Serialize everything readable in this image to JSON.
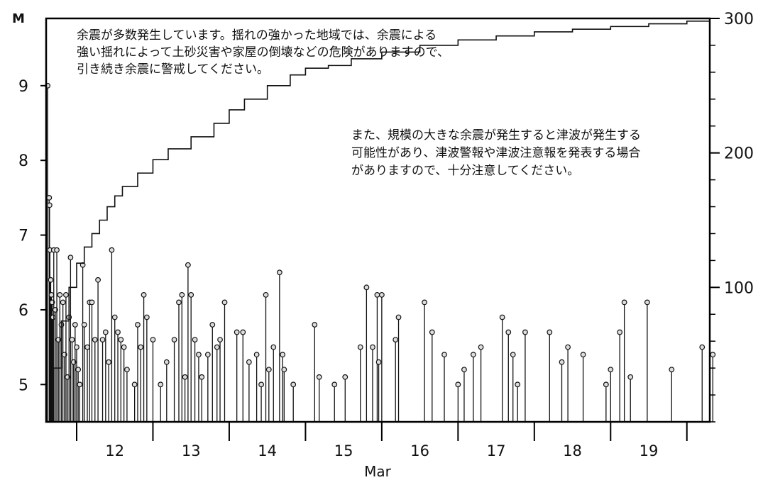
{
  "chart_data": {
    "type": "scatter",
    "title": "",
    "xlabel": "Mar",
    "ylabel_left": "M",
    "ylabel_right": "",
    "x_ticks": [
      "12",
      "13",
      "14",
      "15",
      "16",
      "17",
      "18",
      "19"
    ],
    "y_ticks_left": [
      "5",
      "6",
      "7",
      "8",
      "9"
    ],
    "y_ticks_right": [
      "100",
      "200",
      "300"
    ],
    "ylim_left": [
      4.5,
      9.9
    ],
    "ylim_right": [
      0,
      300
    ],
    "xlim_days": [
      11.6,
      20.3
    ],
    "grid": false,
    "legend": "none",
    "annotations": [
      {
        "id": "aftershock-warning",
        "lines": [
          "余震が多数発生しています。揺れの強かった地域では、余震による",
          "強い揺れによって土砂災害や家屋の倒壊などの危険がありますので、",
          "引き続き余震に警戒してください。"
        ]
      },
      {
        "id": "tsunami-warning",
        "lines": [
          "また、規模の大きな余震が発生すると津波が発生する",
          "可能性があり、津波警報や津波注意報を発表する場合",
          "がありますので、十分注意してください。"
        ]
      }
    ],
    "series": [
      {
        "type": "stem",
        "axis": "left",
        "points": [
          [
            11.62,
            9.0
          ],
          [
            11.64,
            7.5
          ],
          [
            11.645,
            7.4
          ],
          [
            11.65,
            6.8
          ],
          [
            11.66,
            6.4
          ],
          [
            11.67,
            6.2
          ],
          [
            11.68,
            6.1
          ],
          [
            11.69,
            5.9
          ],
          [
            11.7,
            6.8
          ],
          [
            11.72,
            6.0
          ],
          [
            11.74,
            6.8
          ],
          [
            11.76,
            5.6
          ],
          [
            11.78,
            6.2
          ],
          [
            11.8,
            5.8
          ],
          [
            11.82,
            6.1
          ],
          [
            11.84,
            5.4
          ],
          [
            11.86,
            6.2
          ],
          [
            11.88,
            5.1
          ],
          [
            11.9,
            5.9
          ],
          [
            11.92,
            6.7
          ],
          [
            11.94,
            5.6
          ],
          [
            11.96,
            5.3
          ],
          [
            11.98,
            5.8
          ],
          [
            12.0,
            5.5
          ],
          [
            12.02,
            5.2
          ],
          [
            12.04,
            5.0
          ],
          [
            12.08,
            6.6
          ],
          [
            12.1,
            5.8
          ],
          [
            12.14,
            5.5
          ],
          [
            12.17,
            6.1
          ],
          [
            12.2,
            6.1
          ],
          [
            12.24,
            5.6
          ],
          [
            12.28,
            6.4
          ],
          [
            12.34,
            5.6
          ],
          [
            12.38,
            5.7
          ],
          [
            12.42,
            5.3
          ],
          [
            12.46,
            6.8
          ],
          [
            12.5,
            5.9
          ],
          [
            12.54,
            5.7
          ],
          [
            12.58,
            5.6
          ],
          [
            12.62,
            5.5
          ],
          [
            12.66,
            5.2
          ],
          [
            12.76,
            5.0
          ],
          [
            12.8,
            5.8
          ],
          [
            12.84,
            5.5
          ],
          [
            12.88,
            6.2
          ],
          [
            12.92,
            5.9
          ],
          [
            13.0,
            5.6
          ],
          [
            13.1,
            5.0
          ],
          [
            13.18,
            5.3
          ],
          [
            13.28,
            5.6
          ],
          [
            13.34,
            6.1
          ],
          [
            13.38,
            6.2
          ],
          [
            13.42,
            5.1
          ],
          [
            13.46,
            6.6
          ],
          [
            13.5,
            6.2
          ],
          [
            13.55,
            5.6
          ],
          [
            13.6,
            5.4
          ],
          [
            13.64,
            5.1
          ],
          [
            13.72,
            5.4
          ],
          [
            13.78,
            5.8
          ],
          [
            13.84,
            5.5
          ],
          [
            13.88,
            5.6
          ],
          [
            13.94,
            6.1
          ],
          [
            14.1,
            5.7
          ],
          [
            14.18,
            5.7
          ],
          [
            14.26,
            5.3
          ],
          [
            14.36,
            5.4
          ],
          [
            14.42,
            5.0
          ],
          [
            14.48,
            6.2
          ],
          [
            14.52,
            5.2
          ],
          [
            14.58,
            5.5
          ],
          [
            14.66,
            6.5
          ],
          [
            14.7,
            5.4
          ],
          [
            14.72,
            5.2
          ],
          [
            14.84,
            5.0
          ],
          [
            15.12,
            5.8
          ],
          [
            15.18,
            5.1
          ],
          [
            15.38,
            5.0
          ],
          [
            15.52,
            5.1
          ],
          [
            15.72,
            5.5
          ],
          [
            15.8,
            6.3
          ],
          [
            15.88,
            5.5
          ],
          [
            15.94,
            6.2
          ],
          [
            15.96,
            5.3
          ],
          [
            16.0,
            6.2
          ],
          [
            16.18,
            5.6
          ],
          [
            16.22,
            5.9
          ],
          [
            16.56,
            6.1
          ],
          [
            16.66,
            5.7
          ],
          [
            16.82,
            5.4
          ],
          [
            17.0,
            5.0
          ],
          [
            17.08,
            5.2
          ],
          [
            17.2,
            5.4
          ],
          [
            17.3,
            5.5
          ],
          [
            17.58,
            5.9
          ],
          [
            17.66,
            5.7
          ],
          [
            17.72,
            5.4
          ],
          [
            17.78,
            5.0
          ],
          [
            17.88,
            5.7
          ],
          [
            18.2,
            5.7
          ],
          [
            18.36,
            5.3
          ],
          [
            18.44,
            5.5
          ],
          [
            18.64,
            5.4
          ],
          [
            18.94,
            5.0
          ],
          [
            19.0,
            5.2
          ],
          [
            19.12,
            5.7
          ],
          [
            19.18,
            6.1
          ],
          [
            19.26,
            5.1
          ],
          [
            19.48,
            6.1
          ],
          [
            19.8,
            5.2
          ],
          [
            20.2,
            5.5
          ],
          [
            20.34,
            5.4
          ]
        ]
      },
      {
        "type": "step",
        "axis": "right",
        "points": [
          [
            11.62,
            0
          ],
          [
            11.7,
            40
          ],
          [
            11.8,
            75
          ],
          [
            11.9,
            100
          ],
          [
            12.0,
            118
          ],
          [
            12.1,
            130
          ],
          [
            12.2,
            140
          ],
          [
            12.3,
            150
          ],
          [
            12.4,
            160
          ],
          [
            12.5,
            168
          ],
          [
            12.6,
            175
          ],
          [
            12.8,
            185
          ],
          [
            13.0,
            195
          ],
          [
            13.2,
            203
          ],
          [
            13.5,
            212
          ],
          [
            13.8,
            222
          ],
          [
            14.0,
            232
          ],
          [
            14.2,
            240
          ],
          [
            14.5,
            250
          ],
          [
            14.8,
            258
          ],
          [
            15.0,
            263
          ],
          [
            15.3,
            265
          ],
          [
            15.6,
            270
          ],
          [
            16.0,
            275
          ],
          [
            16.5,
            280
          ],
          [
            17.0,
            284
          ],
          [
            17.5,
            287
          ],
          [
            18.0,
            290
          ],
          [
            18.5,
            292
          ],
          [
            19.0,
            294
          ],
          [
            19.5,
            296
          ],
          [
            20.0,
            298
          ],
          [
            20.3,
            299
          ]
        ]
      }
    ]
  }
}
